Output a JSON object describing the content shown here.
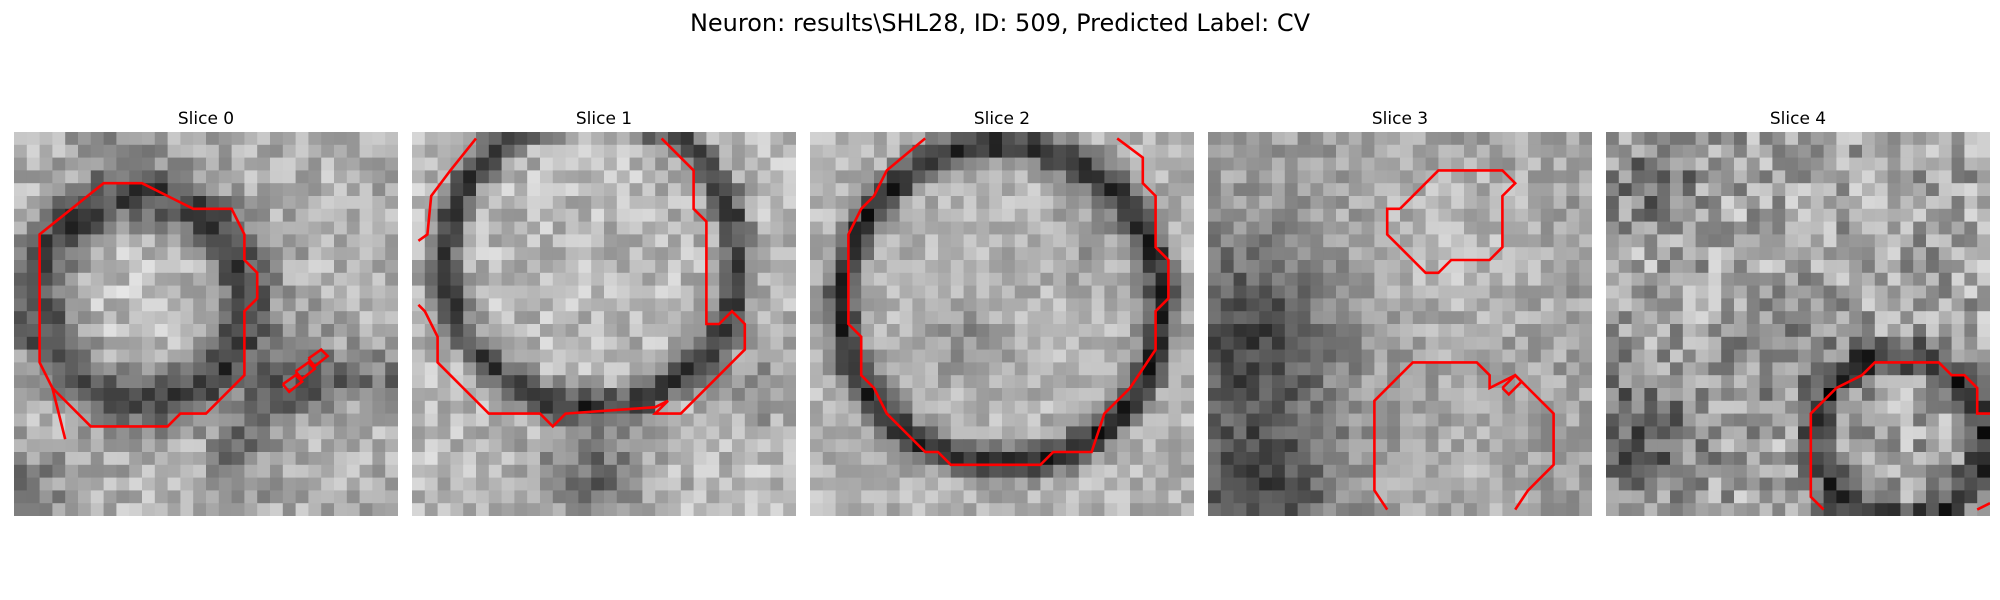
{
  "figure": {
    "title": "Neuron: results\\SHL28, ID: 509, Predicted Label: CV"
  },
  "colors": {
    "contour": "#ff0000",
    "background": "#ffffff"
  },
  "panels": [
    {
      "title": "Slice 0"
    },
    {
      "title": "Slice 1"
    },
    {
      "title": "Slice 2"
    },
    {
      "title": "Slice 3"
    },
    {
      "title": "Slice 4"
    }
  ]
}
